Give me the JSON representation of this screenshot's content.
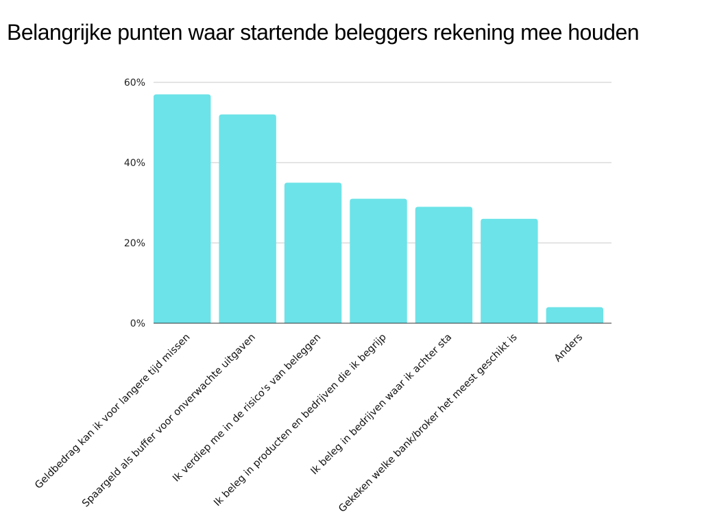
{
  "chart_data": {
    "type": "bar",
    "title": "Belangrijke punten waar startende beleggers rekening mee houden",
    "xlabel": "",
    "ylabel": "",
    "ylim": [
      0,
      60
    ],
    "yticks": [
      "0%",
      "20%",
      "40%",
      "60%"
    ],
    "ytick_values": [
      0,
      20,
      40,
      60
    ],
    "grid": true,
    "legend": "none",
    "bar_color": "#6ce3e8",
    "categories": [
      "Geldbedrag kan ik voor langere tijd missen",
      "Spaargeld als buffer voor onverwachte uitgaven",
      "Ik verdiep me in de risico's van beleggen",
      "Ik beleg in producten en bedrijven die ik begrijp",
      "Ik beleg in bedrijven waar ik achter sta",
      "Gekeken welke bank/broker het meest geschikt is",
      "Anders"
    ],
    "values": [
      57,
      52,
      35,
      31,
      29,
      26,
      4
    ]
  }
}
